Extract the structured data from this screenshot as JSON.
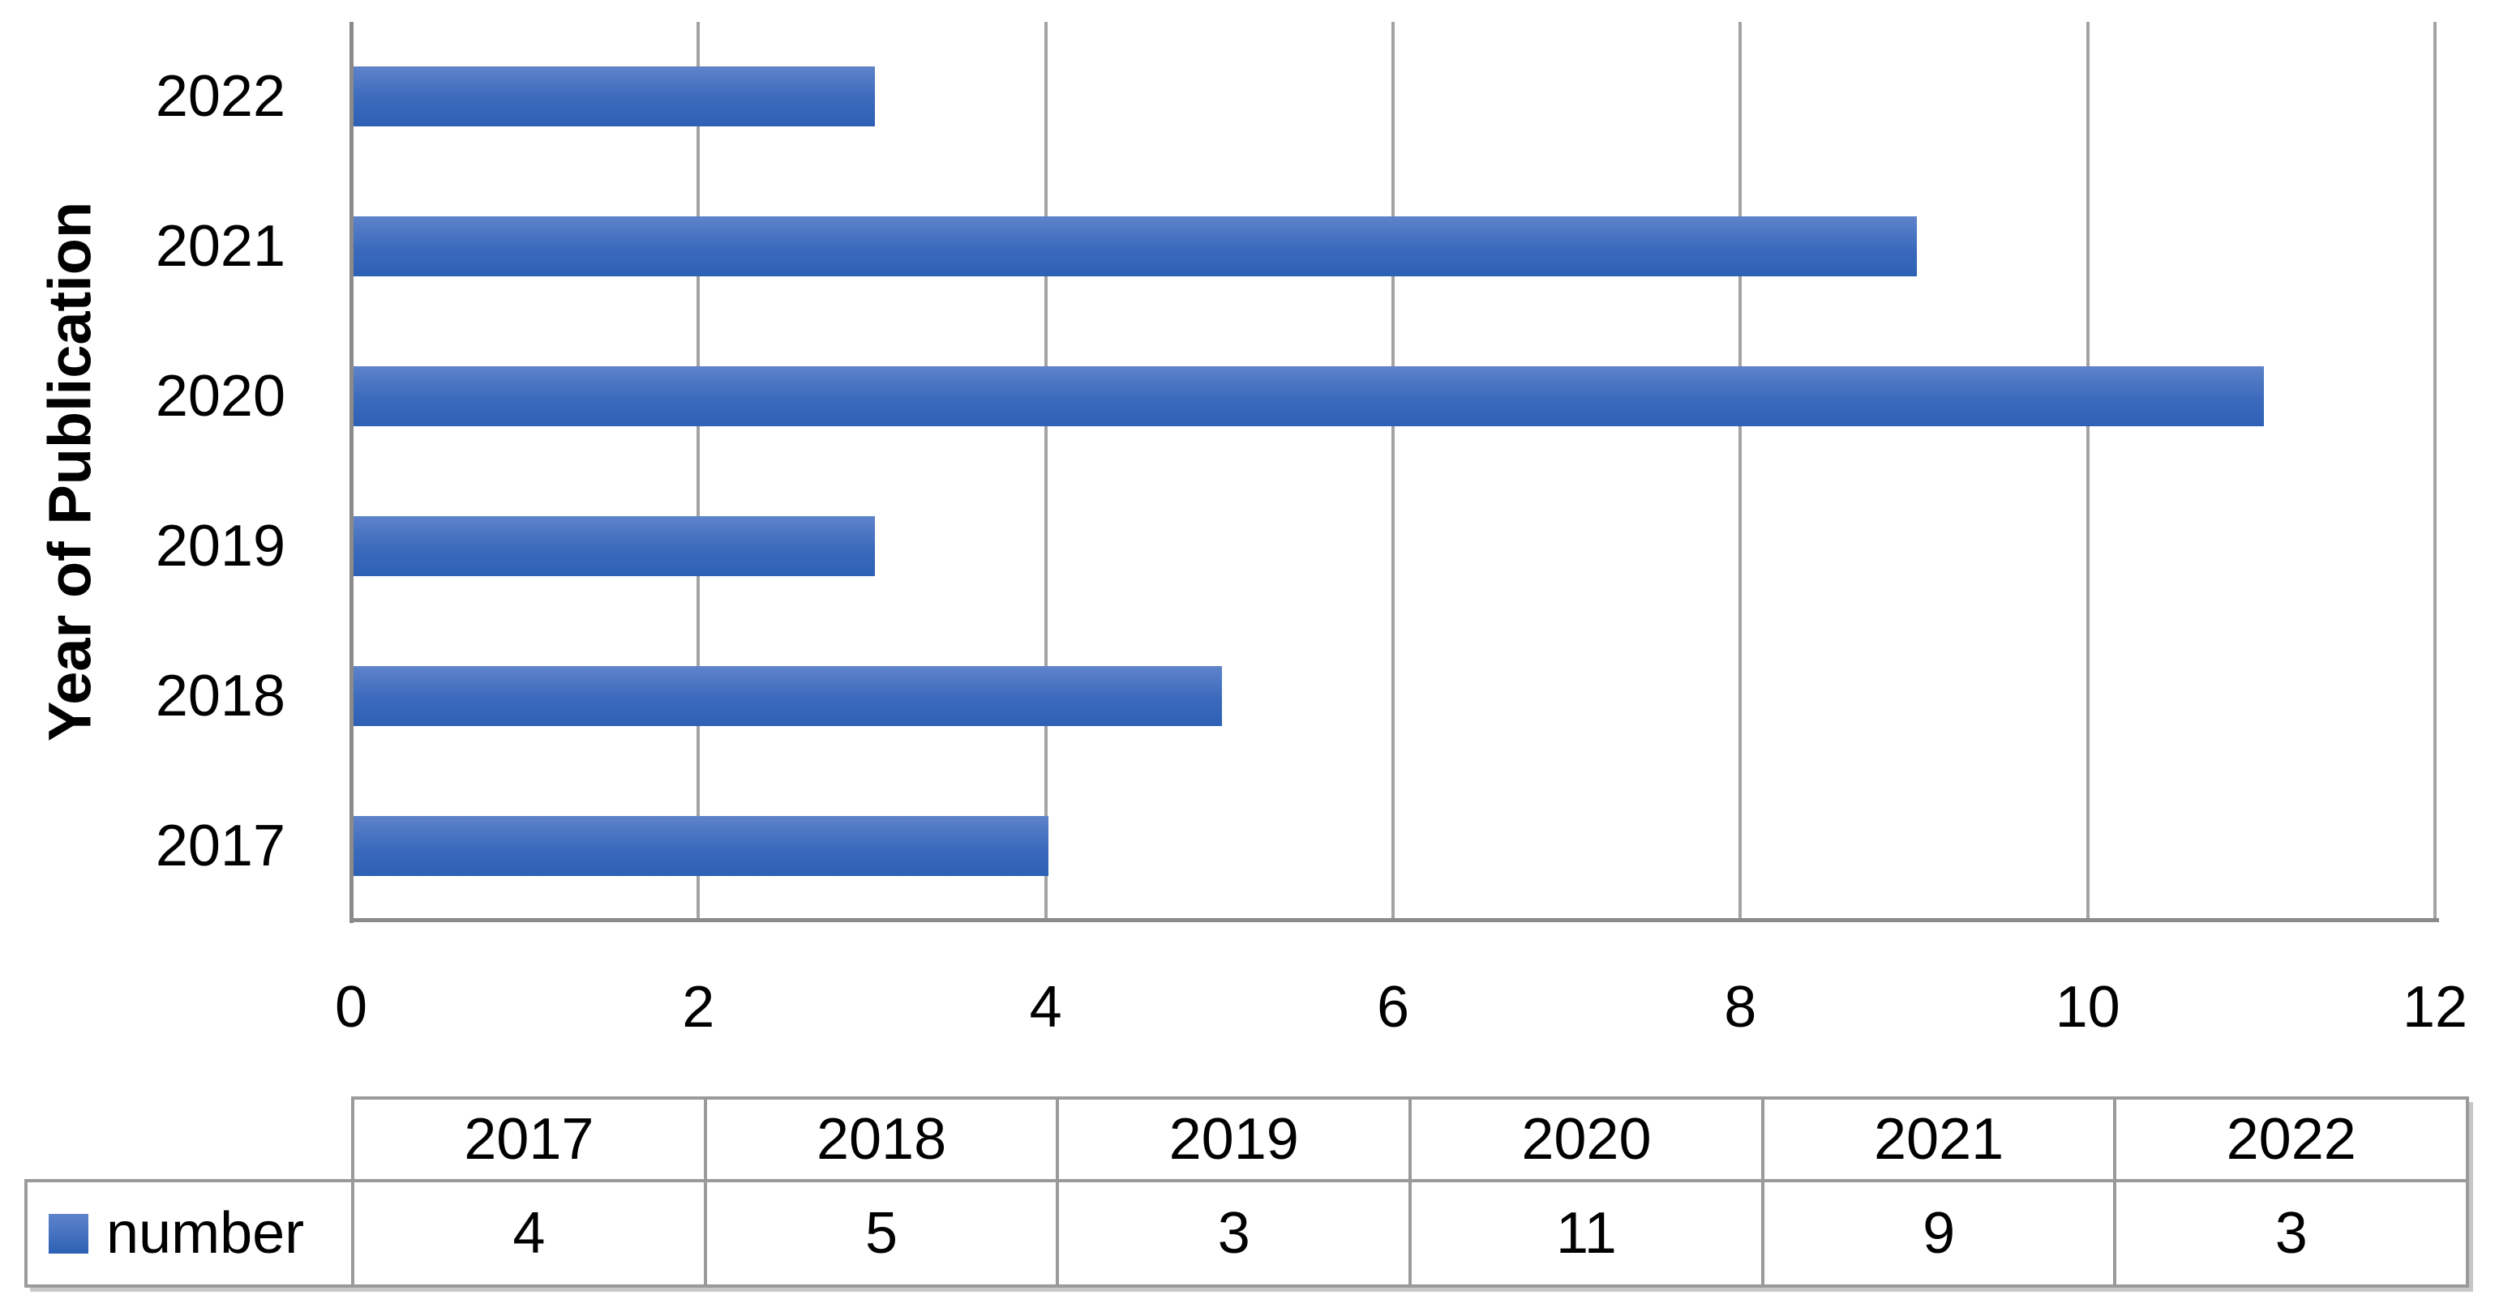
{
  "chart_data": {
    "type": "bar",
    "orientation": "horizontal",
    "title": "",
    "categories": [
      "2017",
      "2018",
      "2019",
      "2020",
      "2021",
      "2022"
    ],
    "series": [
      {
        "name": "number",
        "values": [
          4,
          5,
          3,
          11,
          9,
          3
        ]
      }
    ],
    "category_order_top_to_bottom": [
      "2022",
      "2021",
      "2020",
      "2019",
      "2018",
      "2017"
    ],
    "xlabel": "",
    "ylabel": "Year of Publication",
    "xlim": [
      0,
      12
    ],
    "x_ticks": [
      0,
      2,
      4,
      6,
      8,
      10,
      12
    ],
    "grid": "vertical gridlines at x ticks",
    "legend_position": "data table row header, bottom left"
  },
  "data_table": {
    "corner_cell": "",
    "headers": [
      "2017",
      "2018",
      "2019",
      "2020",
      "2021",
      "2022"
    ],
    "rows": [
      {
        "label": "number",
        "swatch": "blue-gradient-square",
        "values": [
          "4",
          "5",
          "3",
          "11",
          "9",
          "3"
        ]
      }
    ]
  },
  "colors": {
    "bar_gradient_top": "#5e83ca",
    "bar_gradient_bottom": "#2d61b5",
    "gridline": "#a3a3a3",
    "axis_line": "#8a8a8a",
    "table_border": "#9a9a9a",
    "text": "#000000",
    "background": "#ffffff"
  }
}
